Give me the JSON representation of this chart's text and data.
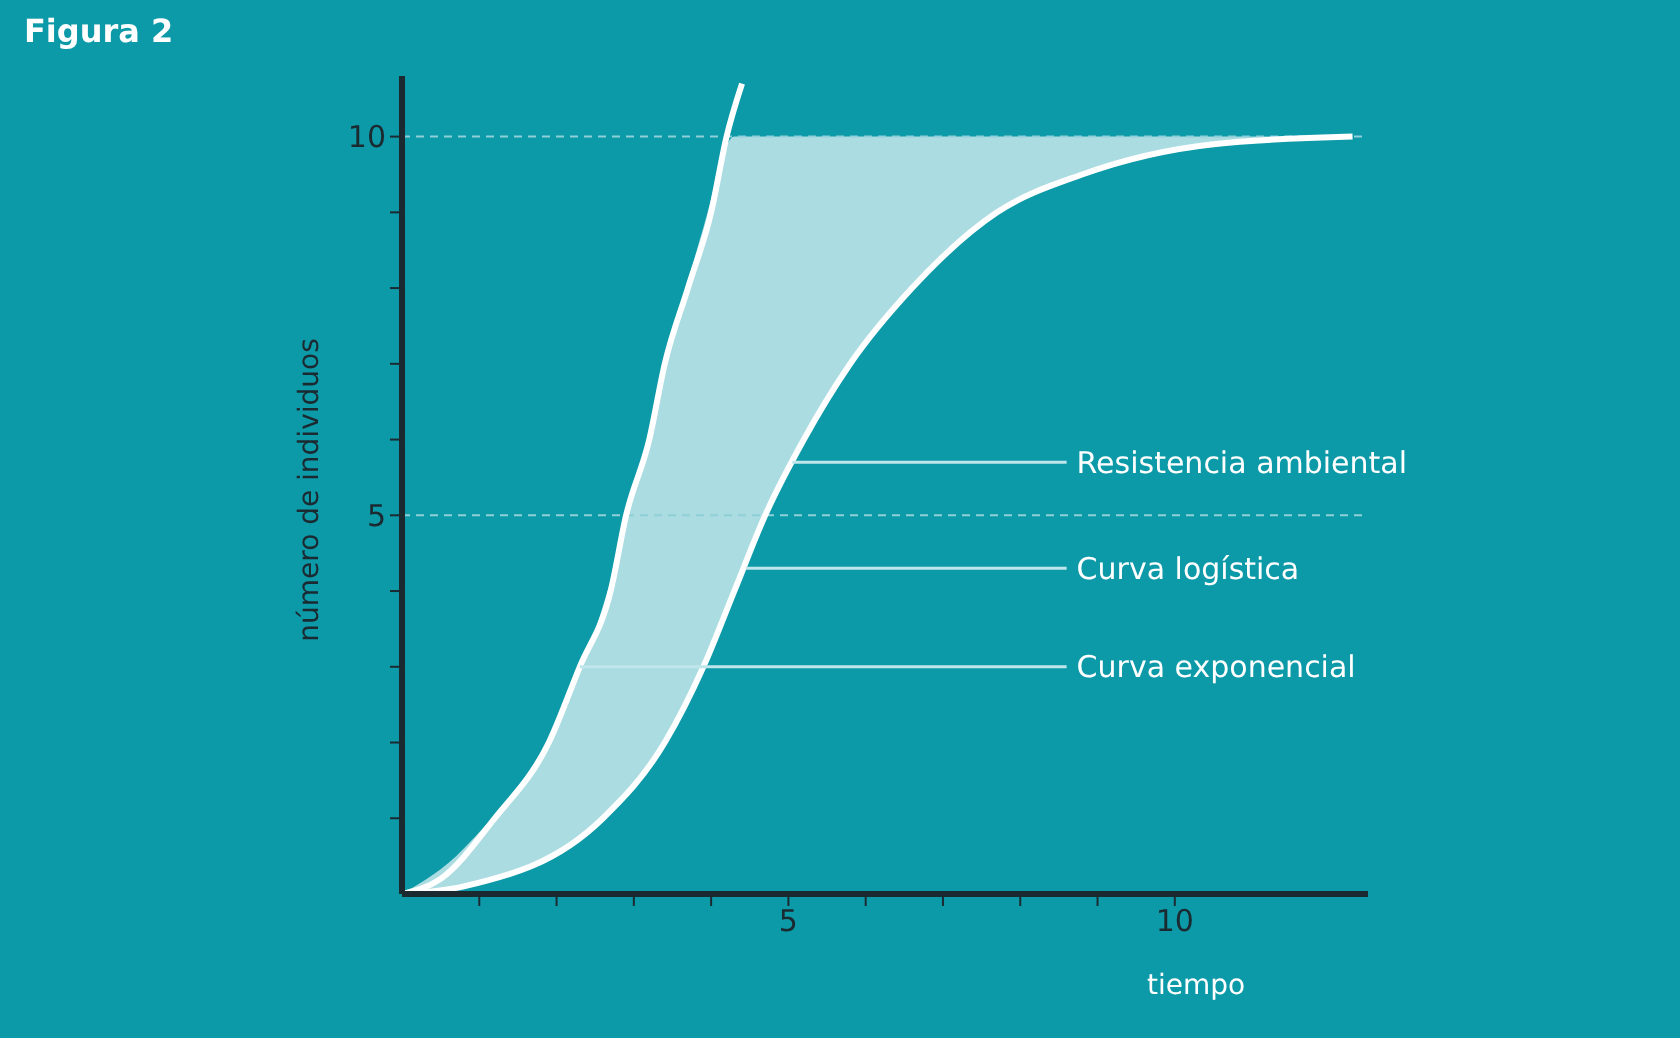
{
  "chart_data": {
    "type": "line",
    "title": "Figura 2",
    "xlabel": "tiempo",
    "ylabel": "número de individuos",
    "xlim": [
      0,
      12.5
    ],
    "ylim": [
      0,
      10.8
    ],
    "xticks": [
      {
        "value": 1,
        "label": null
      },
      {
        "value": 2,
        "label": null
      },
      {
        "value": 3,
        "label": null
      },
      {
        "value": 4,
        "label": null
      },
      5,
      {
        "value": 6,
        "label": null
      },
      {
        "value": 7,
        "label": null
      },
      {
        "value": 8,
        "label": null
      },
      {
        "value": 9,
        "label": null
      },
      10
    ],
    "yticks": [
      {
        "value": 1,
        "label": null
      },
      {
        "value": 2,
        "label": null
      },
      {
        "value": 3,
        "label": null
      },
      {
        "value": 4,
        "label": null
      },
      5,
      {
        "value": 6,
        "label": null
      },
      {
        "value": 7,
        "label": null
      },
      {
        "value": 8,
        "label": null
      },
      {
        "value": 9,
        "label": null
      },
      10
    ],
    "series": [
      {
        "color": "#ffffff",
        "x": [
          0,
          0.5,
          1.2,
          1.9,
          2.3,
          2.7,
          2.9,
          3.2,
          3.4,
          3.7,
          4,
          4.2,
          4.4
        ],
        "values": [
          0,
          0.2,
          1,
          2,
          3,
          4,
          5,
          6,
          7,
          8,
          9,
          10,
          10.7
        ]
      },
      {
        "color": "#ffffff",
        "x": [
          0,
          0.8,
          2.6,
          3.4,
          3.9,
          4.3,
          4.7,
          5.2,
          5.8,
          6.6,
          7.7,
          8.8,
          10.5,
          12.3
        ],
        "values": [
          0,
          0.1,
          1,
          2,
          3,
          4,
          5,
          6,
          7,
          8,
          9,
          9.5,
          9.9,
          10
        ],
        "lower": [
          0,
          0.1,
          1,
          2,
          3,
          4,
          5,
          6,
          7,
          8,
          9,
          9.5,
          9.9,
          10
        ],
        "upper": [
          0,
          0.6,
          3.8,
          6.9,
          8.8,
          10,
          10,
          10,
          10,
          10,
          10,
          10,
          10,
          10
        ]
      }
    ],
    "ref_lines": [
      {
        "axis": "y",
        "value": 10,
        "color": "#8fd0d8",
        "line_style": "dashed"
      },
      {
        "axis": "y",
        "value": 5,
        "color": "#8fd0d8",
        "line_style": "dashed"
      }
    ],
    "annotations": [
      {
        "text": "Resistencia ambiental",
        "x": 5.05,
        "y": 5.7
      },
      {
        "text": "Curva logística",
        "x": 4.45,
        "y": 4.3
      },
      {
        "text": "Curva exponencial",
        "x": 2.3,
        "y": 3
      }
    ],
    "grid": false,
    "legend": false,
    "marker": "none",
    "line_style": "solid"
  }
}
